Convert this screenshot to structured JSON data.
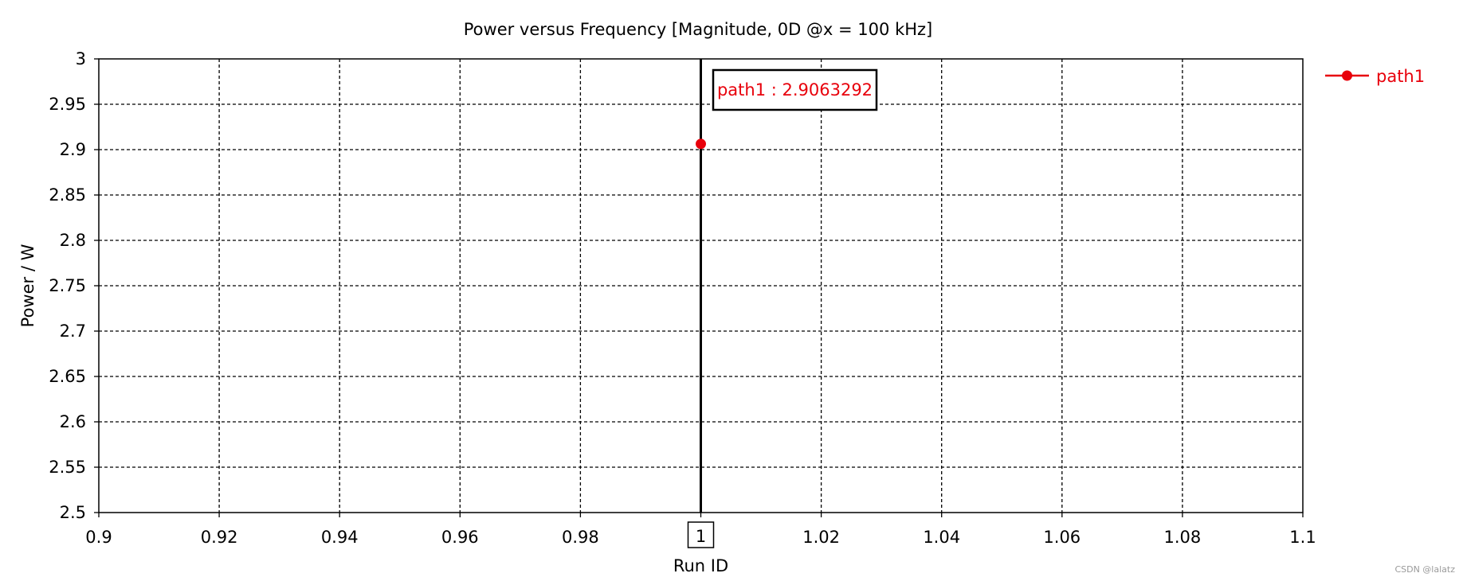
{
  "chart_data": {
    "type": "line",
    "title": "Power versus Frequency [Magnitude, 0D @x = 100 kHz]",
    "xlabel": "Run ID",
    "ylabel": "Power / W",
    "xlim": [
      0.9,
      1.1
    ],
    "ylim": [
      2.5,
      3.0
    ],
    "x_ticks": [
      "0.9",
      "0.92",
      "0.94",
      "0.96",
      "0.98",
      "1",
      "1.02",
      "1.04",
      "1.06",
      "1.08",
      "1.1"
    ],
    "y_ticks": [
      "2.5",
      "2.55",
      "2.6",
      "2.65",
      "2.7",
      "2.75",
      "2.8",
      "2.85",
      "2.9",
      "2.95",
      "3"
    ],
    "grid": true,
    "legend_position": "right",
    "series": [
      {
        "name": "path1",
        "color": "#e8000b",
        "x": [
          1
        ],
        "y": [
          2.9063292
        ]
      }
    ],
    "marker": {
      "x": 1,
      "label": "1"
    },
    "annotation": {
      "text": "path1 : 2.9063292",
      "color": "#e8000b"
    }
  },
  "watermark": "CSDN @lalatz"
}
